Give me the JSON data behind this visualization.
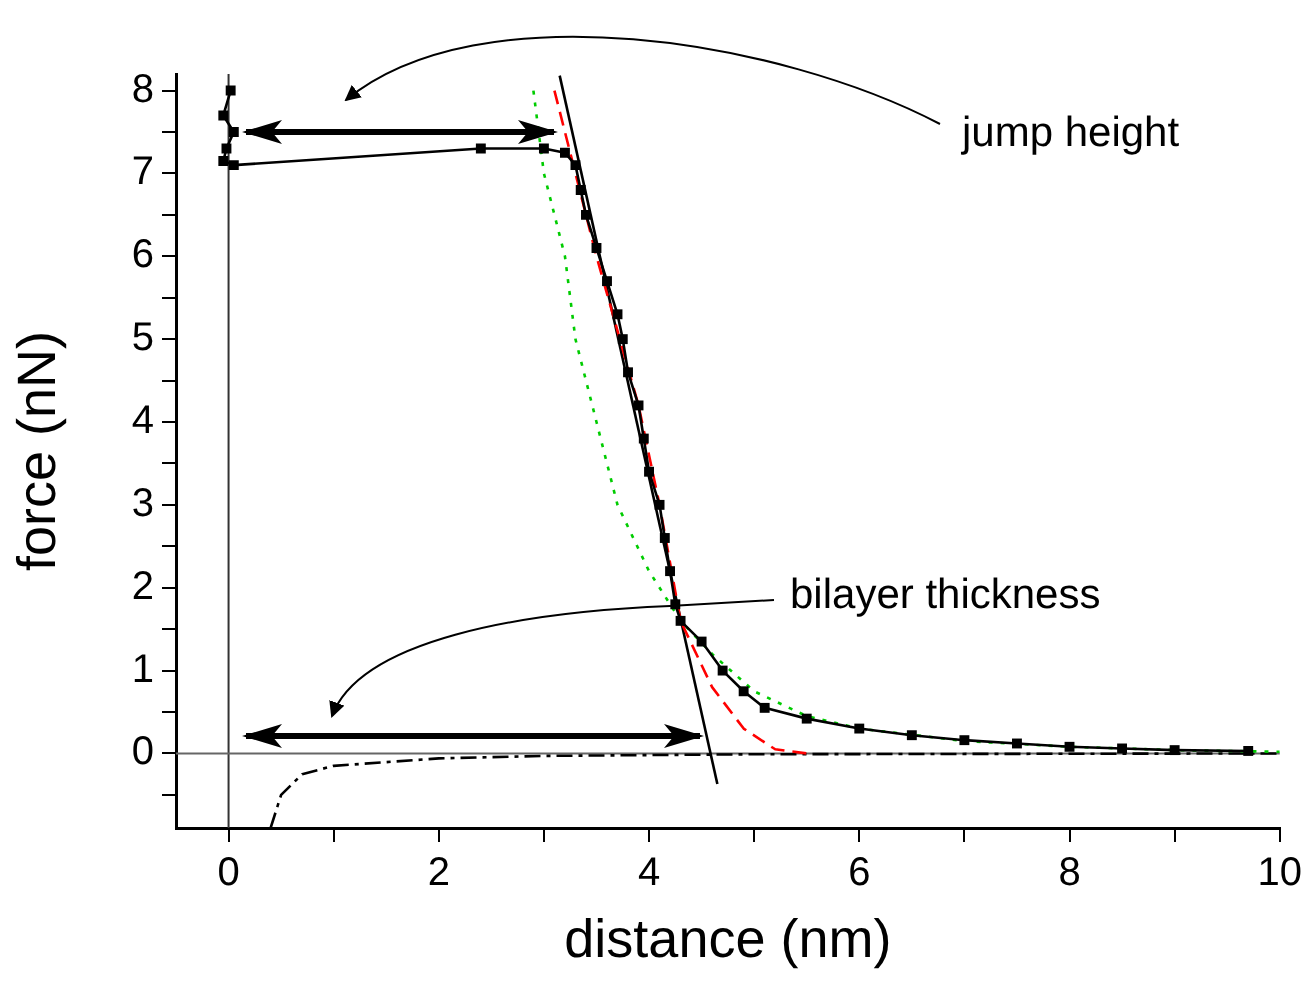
{
  "chart_data": {
    "type": "line",
    "xlabel": "distance (nm)",
    "ylabel": "force (nN)",
    "xlim": [
      -0.5,
      10
    ],
    "ylim": [
      -0.9,
      8.2
    ],
    "xticks": [
      0,
      {
        "value": 1,
        "label": null
      },
      2,
      {
        "value": 3,
        "label": null
      },
      4,
      {
        "value": 5,
        "label": null
      },
      6,
      {
        "value": 7,
        "label": null
      },
      8,
      {
        "value": 9,
        "label": null
      },
      10
    ],
    "yticks": [
      {
        "value": -0.5,
        "label": null
      },
      0,
      {
        "value": 0.5,
        "label": null
      },
      1,
      {
        "value": 1.5,
        "label": null
      },
      2,
      {
        "value": 2.5,
        "label": null
      },
      3,
      {
        "value": 3.5,
        "label": null
      },
      4,
      {
        "value": 4.5,
        "label": null
      },
      5,
      {
        "value": 5.5,
        "label": null
      },
      6,
      {
        "value": 6.5,
        "label": null
      },
      7,
      {
        "value": 7.5,
        "label": null
      },
      8
    ],
    "grid": false,
    "legend": false,
    "series": [
      {
        "color": "#000000",
        "marker": "square",
        "line_style": "solid",
        "x": [
          9.7,
          9.0,
          8.5,
          8.0,
          7.5,
          7.0,
          6.5,
          6.0,
          5.5,
          5.1,
          4.9,
          4.7,
          4.5,
          4.3,
          4.25,
          4.2,
          4.15,
          4.1,
          4.0,
          3.95,
          3.9,
          3.8,
          3.75,
          3.7,
          3.6,
          3.5,
          3.4,
          3.35,
          3.3,
          3.2,
          3.0,
          2.4,
          0.05,
          -0.05,
          -0.02,
          0.05,
          -0.05,
          0.02
        ],
        "values": [
          0.03,
          0.04,
          0.06,
          0.08,
          0.12,
          0.16,
          0.22,
          0.3,
          0.42,
          0.55,
          0.75,
          1.0,
          1.35,
          1.6,
          1.8,
          2.2,
          2.6,
          3.0,
          3.4,
          3.8,
          4.2,
          4.6,
          5.0,
          5.3,
          5.7,
          6.1,
          6.5,
          6.8,
          7.1,
          7.25,
          7.3,
          7.3,
          7.1,
          7.15,
          7.3,
          7.5,
          7.7,
          8.0
        ]
      },
      {
        "color": "#ff0000",
        "marker": "none",
        "line_style": "dashed",
        "x": [
          3.1,
          3.3,
          3.5,
          3.7,
          3.9,
          4.1,
          4.3,
          4.6,
          4.9,
          5.2,
          5.5
        ],
        "values": [
          8.0,
          7.0,
          6.0,
          5.1,
          4.2,
          3.0,
          1.6,
          0.8,
          0.3,
          0.05,
          0.0
        ]
      },
      {
        "color": "#00cc00",
        "marker": "none",
        "line_style": "dotted",
        "x": [
          2.9,
          3.0,
          3.2,
          3.3,
          3.5,
          3.7,
          4.0,
          4.3,
          4.6,
          5.0,
          5.5,
          6.0,
          7.0,
          8.0,
          9.0,
          10.0
        ],
        "values": [
          8.0,
          7.0,
          6.0,
          5.0,
          4.0,
          3.0,
          2.2,
          1.6,
          1.2,
          0.75,
          0.45,
          0.3,
          0.15,
          0.08,
          0.04,
          0.02
        ]
      },
      {
        "color": "#000000",
        "marker": "none",
        "line_style": "solid",
        "x": [
          3.15,
          4.65
        ],
        "values": [
          8.18,
          -0.37
        ]
      },
      {
        "color": "#000000",
        "marker": "none",
        "line_style": "dashdot",
        "x": [
          0.4,
          0.5,
          0.7,
          1.0,
          2.0,
          3.0,
          5.0,
          10.0
        ],
        "values": [
          -0.9,
          -0.5,
          -0.25,
          -0.15,
          -0.06,
          -0.03,
          -0.01,
          0.0
        ]
      }
    ],
    "ref_lines": [
      {
        "axis": "x",
        "value": 0,
        "color": "#333333"
      },
      {
        "axis": "y",
        "value": 0,
        "color": "#666666"
      }
    ],
    "annotations": [
      "jump height",
      "bilayer thickness"
    ]
  }
}
